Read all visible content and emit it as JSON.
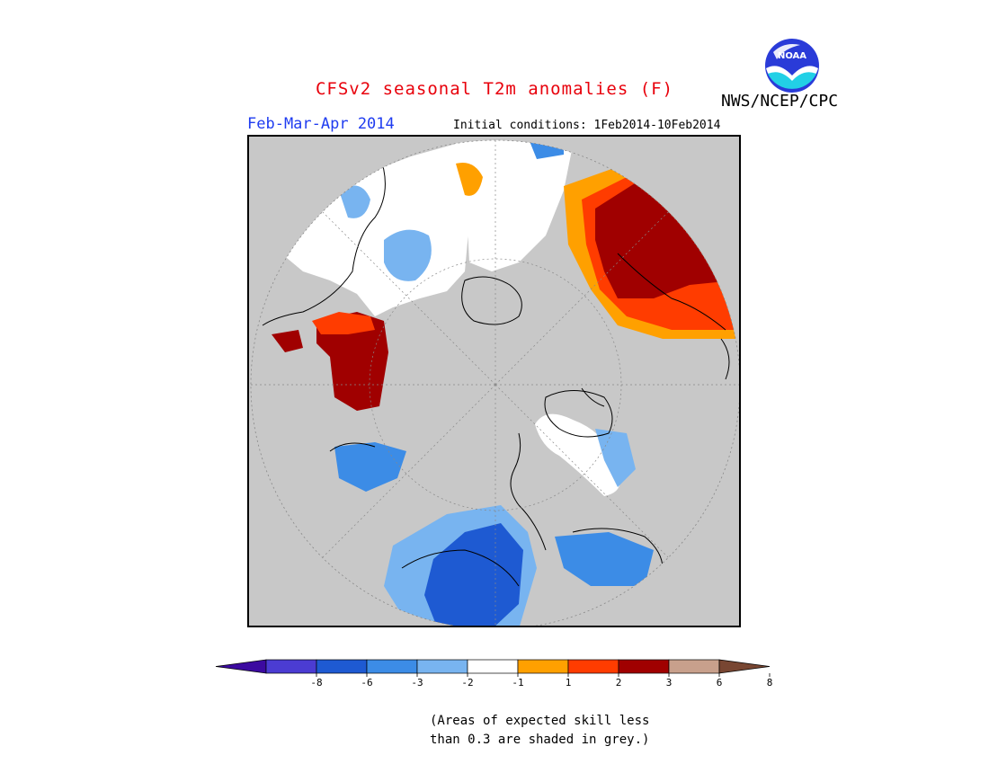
{
  "header": {
    "title": "CFSv2 seasonal T2m anomalies (F)",
    "agency": "NWS/NCEP/CPC",
    "logo_text": "NOAA",
    "season": "Feb-Mar-Apr 2014",
    "initial_conditions": "Initial conditions: 1Feb2014-10Feb2014"
  },
  "map": {
    "projection": "north polar stereographic",
    "no_skill_color": "#c8c8c8"
  },
  "legend": {
    "ticks": [
      "-8",
      "-6",
      "-3",
      "-2",
      "-1",
      "1",
      "2",
      "3",
      "6",
      "8"
    ],
    "colors": [
      "#3c0aa0",
      "#4b3cd2",
      "#1e5ad2",
      "#3c8ce6",
      "#78b4f0",
      "#ffffff",
      "#ffa000",
      "#ff3c00",
      "#a00000",
      "#c8a08c",
      "#784632"
    ],
    "note_line1": "(Areas of expected skill less",
    "note_line2": "than 0.3 are shaded in grey.)"
  }
}
